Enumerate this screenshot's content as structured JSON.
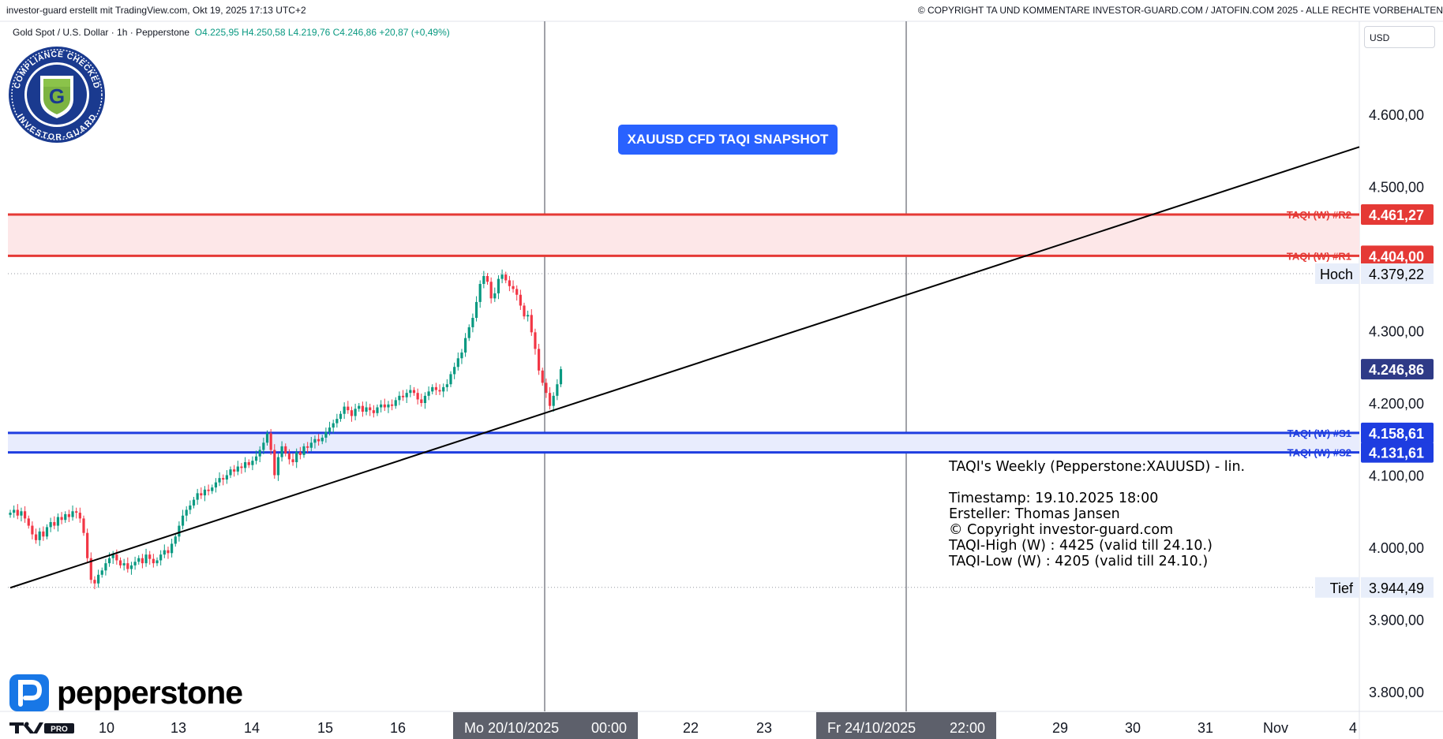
{
  "header": {
    "left": "investor-guard erstellt mit TradingView.com, Okt 19, 2025 17:13 UTC+2",
    "right": "© COPYRIGHT TA UND KOMMENTARE INVESTOR-GUARD.COM / JATOFIN.COM 2025 - ALLE RECHTE VORBEHALTEN"
  },
  "symbol": {
    "name": "Gold Spot / U.S. Dollar · 1h · Pepperstone",
    "open": "O4.225,95",
    "high": "H4.250,58",
    "low": "L4.219,76",
    "close": "C4.246,86",
    "change": "+20,87 (+0,49%)"
  },
  "currency_button": "USD",
  "snapshot_label": "XAUUSD CFD TAQI SNAPSHOT",
  "info": {
    "title": "TAQI's Weekly (Pepperstone:XAUUSD) - lin.",
    "timestamp": "Timestamp: 19.10.2025 18:00",
    "author": "Ersteller: Thomas Jansen",
    "copyright": "© Copyright investor-guard.com",
    "taqi_high": "TAQI-High (W) : 4425 (valid till 24.10.)",
    "taqi_low": "TAQI-Low (W) : 4205 (valid till 24.10.)"
  },
  "logos": {
    "badge_text_top": "COMPLIANCE CHECKED",
    "badge_text_bottom": "INVESTOR-GUARD",
    "badge_letter": "G",
    "broker": "pepperstone",
    "tradingview": "PRO"
  },
  "colors": {
    "up": "#089981",
    "down": "#f23645",
    "resistance": "#e53935",
    "support": "#1e3de0",
    "last_price": "#2e3a87",
    "accent": "#2962ff"
  },
  "chart_data": {
    "type": "candlestick",
    "price_axis": {
      "ticks": [
        4600,
        4500,
        4300,
        4200,
        4100,
        4000,
        3900,
        3800
      ],
      "tick_labels": [
        "4.600,00",
        "4.500,00",
        "4.300,00",
        "4.200,00",
        "4.100,00",
        "4.000,00",
        "3.900,00",
        "3.800,00"
      ],
      "range": [
        3765,
        4640
      ]
    },
    "time_axis": {
      "labels": [
        "10",
        "13",
        "14",
        "15",
        "16",
        "22",
        "23",
        "29",
        "30",
        "31",
        "Nov",
        "4"
      ],
      "highlight_labels": [
        "Mo 20/10/2025",
        "00:00",
        "Fr 24/10/2025",
        "22:00"
      ]
    },
    "levels": [
      {
        "label": "TAQI (W) #R2",
        "value": 4461.27,
        "value_label": "4.461,27",
        "kind": "resistance"
      },
      {
        "label": "TAQI (W) #R1",
        "value": 4404.0,
        "value_label": "4.404,00",
        "kind": "resistance"
      },
      {
        "label": "TAQI (W) #S1",
        "value": 4158.61,
        "value_label": "4.158,61",
        "kind": "support"
      },
      {
        "label": "TAQI (W) #S2",
        "value": 4131.61,
        "value_label": "4.131,61",
        "kind": "support"
      }
    ],
    "high_marker": {
      "label": "Hoch",
      "value": 4379.22,
      "value_label": "4.379,22"
    },
    "low_marker": {
      "label": "Tief",
      "value": 3944.49,
      "value_label": "3.944,49"
    },
    "last_price": {
      "value": 4246.86,
      "value_label": "4.246,86"
    },
    "trendline": {
      "from": {
        "bar": 0,
        "price": 3944
      },
      "to": {
        "bar": 148,
        "price": 4190
      }
    },
    "closes": [
      4048,
      4052,
      4044,
      4050,
      4040,
      4030,
      4018,
      4010,
      4022,
      4015,
      4028,
      4035,
      4030,
      4042,
      4038,
      4046,
      4042,
      4050,
      4048,
      4040,
      4020,
      3985,
      3955,
      3950,
      3962,
      3968,
      3978,
      3985,
      3990,
      3982,
      3975,
      3978,
      3970,
      3975,
      3980,
      3985,
      3978,
      3990,
      3984,
      3978,
      3982,
      3990,
      3996,
      3992,
      4005,
      4015,
      4030,
      4044,
      4052,
      4058,
      4066,
      4075,
      4072,
      4080,
      4078,
      4083,
      4090,
      4096,
      4094,
      4100,
      4108,
      4105,
      4112,
      4110,
      4118,
      4114,
      4120,
      4126,
      4135,
      4145,
      4158,
      4135,
      4100,
      4125,
      4140,
      4130,
      4122,
      4118,
      4132,
      4128,
      4140,
      4138,
      4145,
      4150,
      4147,
      4152,
      4160,
      4166,
      4172,
      4178,
      4185,
      4195,
      4190,
      4182,
      4192,
      4196,
      4188,
      4194,
      4190,
      4186,
      4194,
      4198,
      4194,
      4198,
      4196,
      4204,
      4210,
      4208,
      4214,
      4218,
      4214,
      4205,
      4200,
      4210,
      4216,
      4222,
      4218,
      4216,
      4222,
      4226,
      4240,
      4250,
      4262,
      4270,
      4290,
      4305,
      4318,
      4340,
      4365,
      4376,
      4368,
      4345,
      4352,
      4372,
      4378,
      4370,
      4362,
      4358,
      4350,
      4335,
      4320,
      4322,
      4298,
      4275,
      4245,
      4228,
      4214,
      4196,
      4210,
      4226,
      4246.86
    ]
  }
}
